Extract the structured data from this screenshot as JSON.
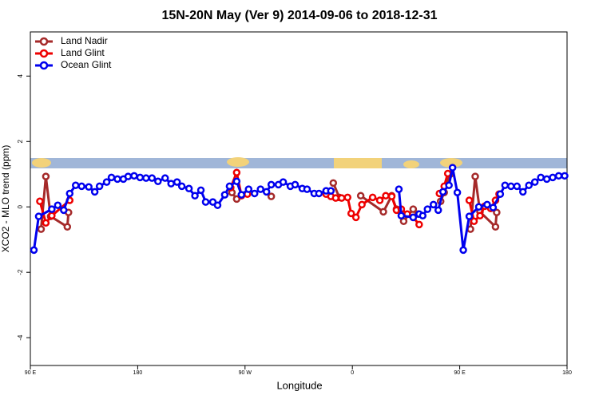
{
  "chart_data": {
    "type": "line",
    "title": "15N-20N May (Ver 9)   2014-09-06 to 2018-12-31",
    "x_label": "Longitude",
    "y_label": "XCO2 - MLO trend (ppm)",
    "xlim": [
      90,
      540
    ],
    "ylim": [
      -4.85,
      5.35
    ],
    "xticks": [
      {
        "value": 90,
        "label": "90 E"
      },
      {
        "value": 180,
        "label": "180"
      },
      {
        "value": 270,
        "label": "90 W"
      },
      {
        "value": 360,
        "label": "0"
      },
      {
        "value": 450,
        "label": "90 E"
      },
      {
        "value": 540,
        "label": "180"
      }
    ],
    "yticks": [
      -4,
      -2,
      0,
      2,
      4
    ],
    "legend": "top-left",
    "series": [
      {
        "name": "Land Nadir",
        "color": "#a52a2a",
        "x": [
          99,
          103,
          107,
          121,
          122,
          190,
          259,
          263,
          267,
          280,
          292,
          330,
          344,
          349,
          365,
          367,
          386,
          393,
          397,
          403,
          411,
          415,
          425,
          434,
          437,
          442,
          450,
          459,
          463,
          467,
          480,
          481
        ],
        "values": [
          -0.68,
          0.93,
          -0.29,
          -0.61,
          -0.17,
          null,
          0.44,
          0.24,
          0.37,
          null,
          0.32,
          null,
          0.73,
          0.29,
          null,
          0.34,
          -0.15,
          0.34,
          -0.07,
          -0.44,
          -0.07,
          -0.22,
          null,
          0.17,
          0.44,
          1.0,
          null,
          -0.68,
          0.93,
          -0.15,
          -0.61,
          -0.17
        ]
      },
      {
        "name": "Land Glint",
        "color": "#ee0000",
        "x": [
          98,
          103,
          108,
          123,
          190,
          258,
          263,
          267,
          272,
          300,
          338,
          342,
          346,
          351,
          356,
          359,
          363,
          368,
          377,
          383,
          388,
          393,
          397,
          401,
          406,
          411,
          416,
          425,
          433,
          437,
          440,
          450,
          458,
          462,
          467,
          471,
          476,
          480,
          483
        ],
        "values": [
          0.17,
          -0.49,
          -0.27,
          0.2,
          null,
          0.59,
          1.05,
          0.34,
          0.39,
          null,
          0.39,
          0.32,
          0.27,
          0.27,
          0.29,
          -0.2,
          -0.32,
          0.07,
          0.29,
          0.2,
          0.34,
          0.32,
          -0.1,
          -0.07,
          -0.22,
          -0.32,
          -0.54,
          null,
          0.41,
          0.63,
          1.02,
          null,
          0.2,
          -0.44,
          -0.27,
          0.02,
          -0.05,
          0.2,
          0.39
        ]
      },
      {
        "name": "Ocean Glint",
        "color": "#0000ee",
        "x": [
          93,
          97,
          108,
          113,
          118,
          123,
          128,
          133,
          139,
          144,
          148,
          154,
          158,
          163,
          168,
          172,
          177,
          182,
          187,
          192,
          197,
          203,
          208,
          213,
          217,
          223,
          228,
          233,
          237,
          243,
          247,
          253,
          257,
          263,
          267,
          273,
          278,
          283,
          288,
          292,
          298,
          302,
          308,
          312,
          318,
          322,
          328,
          332,
          338,
          342,
          370,
          399,
          401,
          411,
          416,
          419,
          423,
          428,
          432,
          436,
          441,
          444,
          448,
          453,
          458,
          466,
          473,
          478,
          484,
          488,
          493,
          498,
          503,
          508,
          513,
          518,
          523,
          528,
          533,
          538
        ],
        "values": [
          -1.32,
          -0.29,
          -0.07,
          0.05,
          -0.1,
          0.41,
          0.66,
          0.63,
          0.61,
          0.46,
          0.63,
          0.76,
          0.9,
          0.85,
          0.85,
          0.93,
          0.95,
          0.9,
          0.88,
          0.88,
          0.78,
          0.88,
          0.71,
          0.76,
          0.63,
          0.56,
          0.34,
          0.51,
          0.15,
          0.15,
          0.05,
          0.37,
          0.63,
          0.78,
          0.37,
          0.54,
          0.41,
          0.54,
          0.46,
          0.68,
          0.68,
          0.76,
          0.63,
          0.68,
          0.56,
          0.54,
          0.41,
          0.41,
          0.49,
          0.49,
          null,
          0.54,
          -0.27,
          -0.32,
          -0.22,
          -0.27,
          -0.07,
          0.07,
          -0.1,
          0.46,
          0.66,
          1.2,
          0.44,
          -1.32,
          -0.29,
          0,
          0.07,
          -0.02,
          0.39,
          0.66,
          0.63,
          0.63,
          0.46,
          0.66,
          0.76,
          0.9,
          0.85,
          0.9,
          0.95,
          0.95
        ]
      }
    ]
  }
}
